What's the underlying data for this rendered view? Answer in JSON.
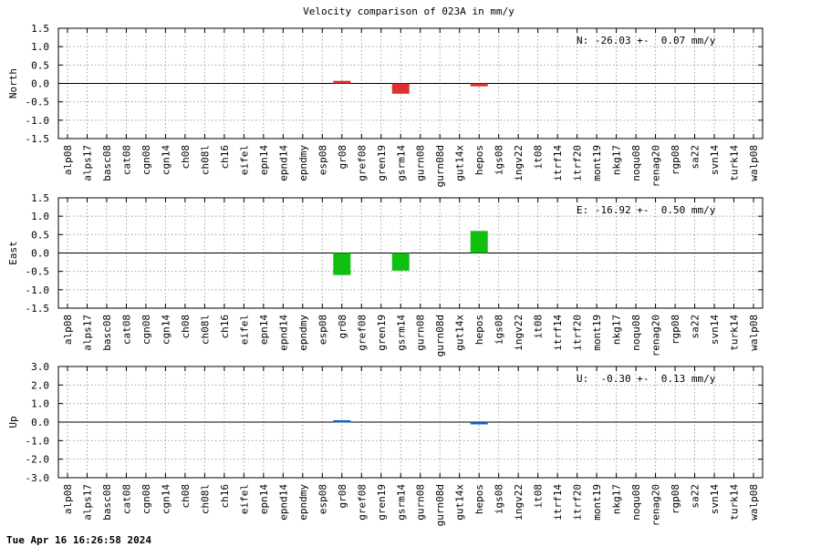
{
  "title": "Velocity comparison of 023A in mm/y",
  "timestamp": "Tue Apr 16 16:26:58 2024",
  "chart_data": [
    {
      "type": "bar",
      "ylabel": "North",
      "ylim": [
        -1.5,
        1.5
      ],
      "yticks": [
        "1.5",
        "1.0",
        "0.5",
        "0.0",
        "-0.5",
        "-1.0",
        "-1.5"
      ],
      "ytick_values": [
        1.5,
        1.0,
        0.5,
        0.0,
        -0.5,
        -1.0,
        -1.5
      ],
      "annotation": "N: -26.03 +-  0.07 mm/y",
      "color": "#e03030",
      "grid": true,
      "categories": [
        "alp08",
        "alps17",
        "basc08",
        "cat08",
        "cgn08",
        "cgn14",
        "ch08",
        "ch08l",
        "ch16",
        "eifel",
        "epn14",
        "epnd14",
        "epndmy",
        "esp08",
        "gr08",
        "gref08",
        "gren19",
        "gsrm14",
        "gurn08",
        "gurn08d",
        "gut14x",
        "hepos",
        "igs08",
        "ingv22",
        "it08",
        "itrf14",
        "itrf20",
        "mont19",
        "nkg17",
        "noqu08",
        "renag20",
        "rgp08",
        "sa22",
        "svn14",
        "turk14",
        "walp08"
      ],
      "values": [
        0,
        0,
        0,
        0,
        0,
        0,
        0,
        0,
        0,
        0,
        0,
        0,
        0,
        0,
        0.07,
        0,
        0,
        -0.28,
        0,
        0,
        0,
        -0.08,
        0,
        0,
        0,
        0,
        0,
        0,
        0,
        0,
        0,
        0,
        0,
        0,
        0,
        0
      ]
    },
    {
      "type": "bar",
      "ylabel": "East",
      "ylim": [
        -1.5,
        1.5
      ],
      "yticks": [
        "1.5",
        "1.0",
        "0.5",
        "0.0",
        "-0.5",
        "-1.0",
        "-1.5"
      ],
      "ytick_values": [
        1.5,
        1.0,
        0.5,
        0.0,
        -0.5,
        -1.0,
        -1.5
      ],
      "annotation": "E: -16.92 +-  0.50 mm/y",
      "color": "#10c010",
      "grid": true,
      "categories": [
        "alp08",
        "alps17",
        "basc08",
        "cat08",
        "cgn08",
        "cgn14",
        "ch08",
        "ch08l",
        "ch16",
        "eifel",
        "epn14",
        "epnd14",
        "epndmy",
        "esp08",
        "gr08",
        "gref08",
        "gren19",
        "gsrm14",
        "gurn08",
        "gurn08d",
        "gut14x",
        "hepos",
        "igs08",
        "ingv22",
        "it08",
        "itrf14",
        "itrf20",
        "mont19",
        "nkg17",
        "noqu08",
        "renag20",
        "rgp08",
        "sa22",
        "svn14",
        "turk14",
        "walp08"
      ],
      "values": [
        0,
        0,
        0,
        0,
        0,
        0,
        0,
        0,
        0,
        0,
        0,
        0,
        0,
        0,
        -0.6,
        0,
        0,
        -0.48,
        0,
        0,
        0,
        0.6,
        0,
        0,
        0,
        0,
        0,
        0,
        0,
        0,
        0,
        0,
        0,
        0,
        0,
        0
      ]
    },
    {
      "type": "bar",
      "ylabel": "Up",
      "ylim": [
        -3.0,
        3.0
      ],
      "yticks": [
        "3.0",
        "2.0",
        "1.0",
        "0.0",
        "-1.0",
        "-2.0",
        "-3.0"
      ],
      "ytick_values": [
        3.0,
        2.0,
        1.0,
        0.0,
        -1.0,
        -2.0,
        -3.0
      ],
      "annotation": "U:  -0.30 +-  0.13 mm/y",
      "color": "#1060c0",
      "grid": true,
      "categories": [
        "alp08",
        "alps17",
        "basc08",
        "cat08",
        "cgn08",
        "cgn14",
        "ch08",
        "ch08l",
        "ch16",
        "eifel",
        "epn14",
        "epnd14",
        "epndmy",
        "esp08",
        "gr08",
        "gref08",
        "gren19",
        "gsrm14",
        "gurn08",
        "gurn08d",
        "gut14x",
        "hepos",
        "igs08",
        "ingv22",
        "it08",
        "itrf14",
        "itrf20",
        "mont19",
        "nkg17",
        "noqu08",
        "renag20",
        "rgp08",
        "sa22",
        "svn14",
        "turk14",
        "walp08"
      ],
      "values": [
        0,
        0,
        0,
        0,
        0,
        0,
        0,
        0,
        0,
        0,
        0,
        0,
        0,
        0,
        0.1,
        0,
        0,
        0,
        0,
        0,
        0,
        -0.12,
        0,
        0,
        0,
        0,
        0,
        0,
        0,
        0,
        0,
        0,
        0,
        0,
        0,
        0
      ]
    }
  ]
}
